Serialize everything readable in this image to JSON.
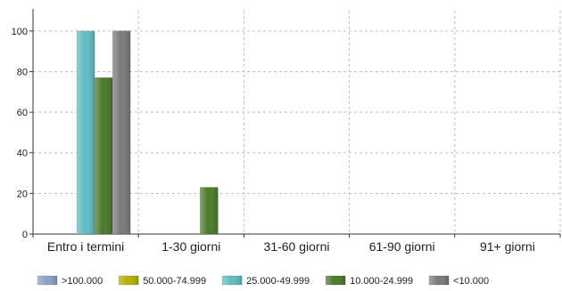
{
  "chart_data": {
    "type": "bar",
    "categories": [
      "Entro i termini",
      "1-30 giorni",
      "31-60 giorni",
      "61-90 giorni",
      "91+ giorni"
    ],
    "series": [
      {
        "name": ">100.000",
        "color": "#8aa0c8",
        "values": [
          0,
          0,
          0,
          0,
          0
        ]
      },
      {
        "name": "50.000-74.999",
        "color": "#b3b000",
        "values": [
          0,
          0,
          0,
          0,
          0
        ]
      },
      {
        "name": "25.000-49.999",
        "color": "#5fbcc3",
        "values": [
          100,
          0,
          0,
          0,
          0
        ]
      },
      {
        "name": "10.000-24.999",
        "color": "#4b7a2a",
        "values": [
          77,
          23,
          0,
          0,
          0
        ]
      },
      {
        "name": "<10.000",
        "color": "#7a7a7a",
        "values": [
          100,
          0,
          0,
          0,
          0
        ]
      }
    ],
    "yticks": [
      0,
      20,
      40,
      60,
      80,
      100
    ],
    "ylim": [
      0,
      110
    ],
    "grid": true,
    "legend_position": "bottom"
  }
}
